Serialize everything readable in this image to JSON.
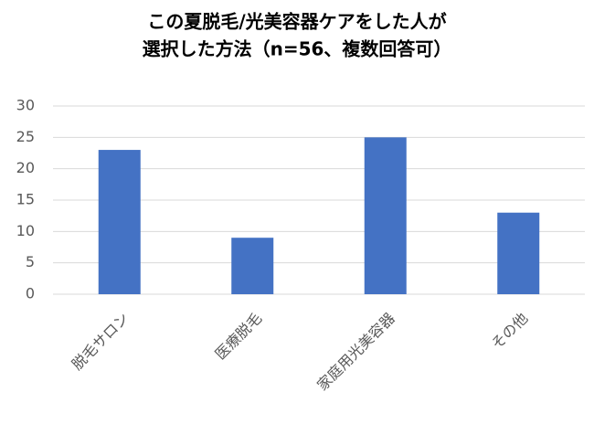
{
  "chart_data": {
    "type": "bar",
    "title": [
      "この夏脱毛/光美容器ケアをした人が",
      "選択した方法（n=56、複数回答可）"
    ],
    "categories": [
      "脱毛サロン",
      "医療脱毛",
      "家庭用光美容器",
      "その他"
    ],
    "values": [
      23,
      9,
      25,
      13
    ],
    "color": "#4472c4",
    "ylim": [
      0,
      30
    ],
    "yticks": [
      0,
      5,
      10,
      15,
      20,
      25,
      30
    ],
    "grid": true
  }
}
